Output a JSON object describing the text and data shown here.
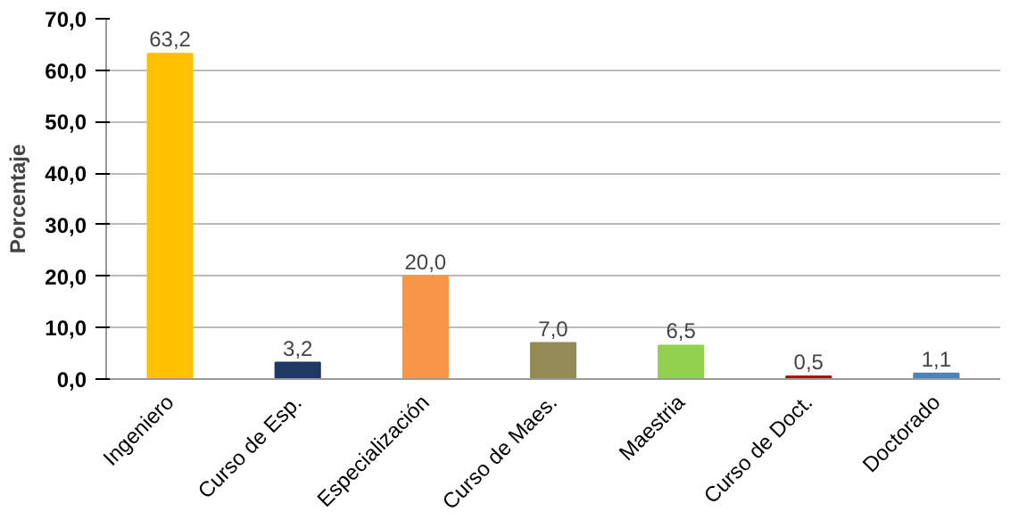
{
  "chart_data": {
    "type": "bar",
    "ylabel": "Porcentaje",
    "categories": [
      "Ingeniero",
      "Curso de Esp.",
      "Especialización",
      "Curso de Maes.",
      "Maestria",
      "Curso de Doct.",
      "Doctorado"
    ],
    "values": [
      63.2,
      3.2,
      20.0,
      7.0,
      6.5,
      0.5,
      1.1
    ],
    "value_labels": [
      "63,2",
      "3,2",
      "20,0",
      "7,0",
      "6,5",
      "0,5",
      "1,1"
    ],
    "colors": [
      "#ffc000",
      "#1f3864",
      "#f79646",
      "#948a54",
      "#92d050",
      "#c00000",
      "#4f81bd"
    ],
    "ylim": [
      0,
      70
    ],
    "yticks": [
      {
        "value": 0,
        "label": "0,0"
      },
      {
        "value": 10,
        "label": "10,0"
      },
      {
        "value": 20,
        "label": "20,0"
      },
      {
        "value": 30,
        "label": "30,0"
      },
      {
        "value": 40,
        "label": "40,0"
      },
      {
        "value": 50,
        "label": "50,0"
      },
      {
        "value": 60,
        "label": "60,0"
      },
      {
        "value": 70,
        "label": "70,0"
      }
    ],
    "grid": "y"
  }
}
